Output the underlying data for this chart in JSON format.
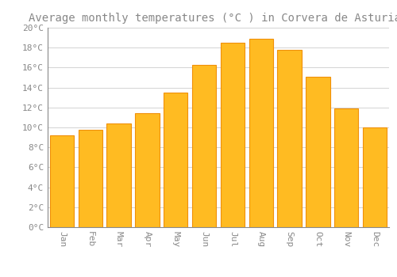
{
  "title": "Average monthly temperatures (°C ) in Corvera de Asturias",
  "months": [
    "Jan",
    "Feb",
    "Mar",
    "Apr",
    "May",
    "Jun",
    "Jul",
    "Aug",
    "Sep",
    "Oct",
    "Nov",
    "Dec"
  ],
  "values": [
    9.2,
    9.8,
    10.4,
    11.4,
    13.5,
    16.3,
    18.5,
    18.9,
    17.8,
    15.1,
    11.9,
    10.0
  ],
  "bar_color_face": "#FFBB22",
  "bar_color_edge": "#F0900A",
  "background_color": "#FFFFFF",
  "grid_color": "#CCCCCC",
  "text_color": "#888888",
  "ylim": [
    0,
    20
  ],
  "yticks": [
    0,
    2,
    4,
    6,
    8,
    10,
    12,
    14,
    16,
    18,
    20
  ],
  "title_fontsize": 10,
  "tick_fontsize": 8,
  "font_family": "monospace",
  "bar_width": 0.85
}
